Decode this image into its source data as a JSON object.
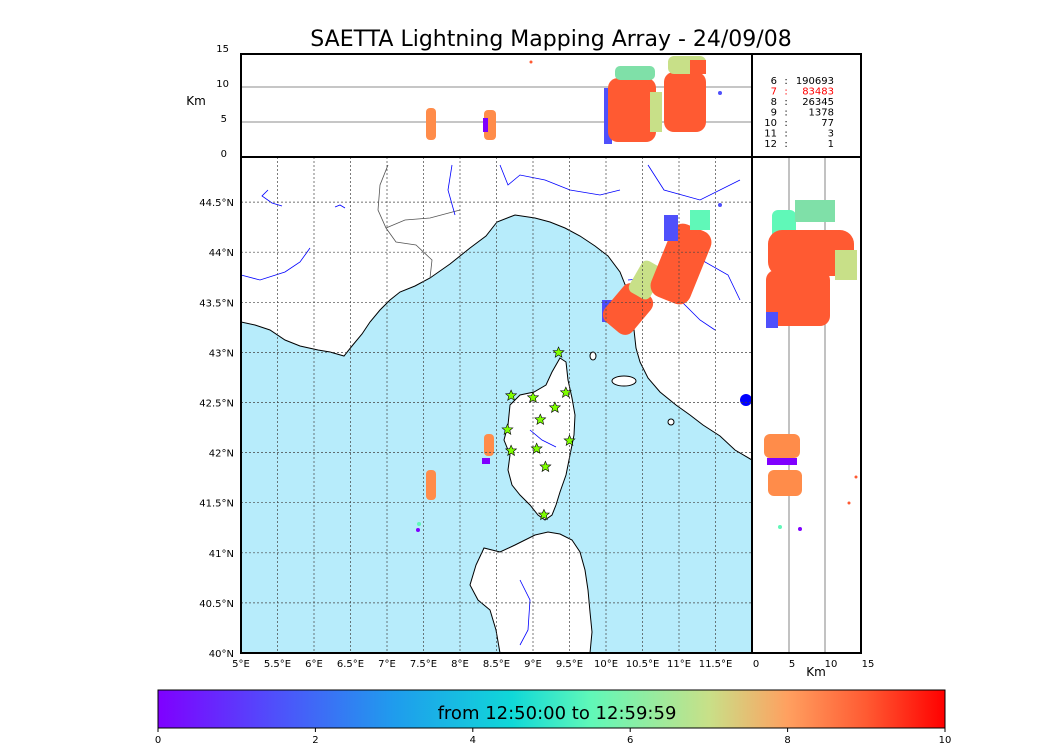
{
  "title": "SAETTA Lightning Mapping Array - 24/09/08",
  "top_panel": {
    "ylabel": "Km",
    "yticks": [
      "15",
      "10",
      "5",
      "0"
    ]
  },
  "map": {
    "lon_ticks": [
      "5°E",
      "5.5°E",
      "6°E",
      "6.5°E",
      "7°E",
      "7.5°E",
      "8°E",
      "8.5°E",
      "9°E",
      "9.5°E",
      "10°E",
      "10.5°E",
      "11°E",
      "11.5°E"
    ],
    "lat_ticks": [
      "44.5°N",
      "44°N",
      "43.5°N",
      "43°N",
      "42.5°N",
      "42°N",
      "41.5°N",
      "41°N",
      "40.5°N",
      "40°N"
    ],
    "lon_range": [
      5,
      12
    ],
    "lat_range": [
      40,
      44.95
    ],
    "colors": {
      "sea": "#b7ecfb",
      "land": "#ffffff",
      "coast": "#000000",
      "rivers": "#0000ff",
      "borders": "#555555"
    }
  },
  "right_panel": {
    "xticks": [
      "0",
      "5",
      "10",
      "15"
    ],
    "xlabel": "Km"
  },
  "station_counts": [
    {
      "stations": "6",
      "count": "190693",
      "color": "#000000"
    },
    {
      "stations": "7",
      "count": "83483",
      "color": "#ff0000"
    },
    {
      "stations": "8",
      "count": "26345",
      "color": "#000000"
    },
    {
      "stations": "9",
      "count": "1378",
      "color": "#000000"
    },
    {
      "stations": "10",
      "count": "77",
      "color": "#000000"
    },
    {
      "stations": "11",
      "count": "3",
      "color": "#000000"
    },
    {
      "stations": "12",
      "count": "1",
      "color": "#000000"
    }
  ],
  "colorbar": {
    "label": "from 12:50:00 to 12:59:59",
    "ticks": [
      "0",
      "2",
      "4",
      "6",
      "8",
      "10"
    ],
    "range": [
      0,
      10
    ],
    "colormap": "rainbow"
  },
  "stations_marker": {
    "color": "#7fff00",
    "symbol": "star"
  }
}
